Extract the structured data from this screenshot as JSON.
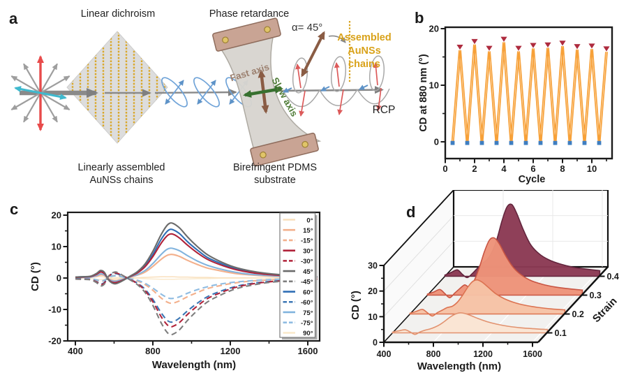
{
  "panels": {
    "a_label": "a",
    "b_label": "b",
    "c_label": "c",
    "d_label": "d"
  },
  "panel_a": {
    "title_linear_dichroism": "Linear dichroism",
    "title_phase_retardance": "Phase retardance",
    "caption_linearly_assembled_line1": "Linearly assembled",
    "caption_linearly_assembled_line2": "AuNSs chains",
    "caption_birefringent_line1": "Birefringent PDMS",
    "caption_birefringent_line2": "substrate",
    "alpha_angle_label": "α= 45°",
    "assembled_chains_line1": "Assembled",
    "assembled_chains_line2": "AuNSs",
    "assembled_chains_line3": "chains",
    "fast_axis_label": "Fast axis",
    "slow_axis_label": "Slow axis",
    "rcp_label": "RCP",
    "colors": {
      "gold_chains": "#D9A521",
      "unpolarized_red": "#E84B4B",
      "polarized_cyan": "#3FB9CE",
      "fast_axis_brown": "#8A5C44",
      "slow_axis_green": "#37702F",
      "wave_blue": "#6FA3D8",
      "helix_red": "#DC5A5A",
      "beam_gray": "#8A8A8A"
    }
  },
  "chart_data": [
    {
      "id": "b",
      "type": "line",
      "xlabel": "Cycle",
      "ylabel": "CD at 880 nm (°)",
      "xlim": [
        0,
        11.4
      ],
      "ylim": [
        -3,
        20.2
      ],
      "xticks": [
        0,
        2,
        4,
        6,
        8,
        10
      ],
      "xminor": [
        1,
        3,
        5,
        7,
        9,
        11
      ],
      "yticks": [
        0,
        10,
        20
      ],
      "yminor": [
        5,
        15
      ],
      "grid": false,
      "line_color": "#F7A139",
      "series": [
        {
          "name": "stretched-peaks",
          "marker": "triangle-down",
          "color": "#AE2B3E",
          "x": [
            1,
            2,
            3,
            4,
            5,
            6,
            7,
            8,
            9,
            10,
            11
          ],
          "y": [
            16.2,
            17.2,
            16.0,
            17.6,
            16.0,
            16.5,
            16.6,
            16.9,
            16.3,
            16.4,
            15.9
          ]
        },
        {
          "name": "released-valleys",
          "marker": "square",
          "color": "#3E7EC1",
          "x": [
            0.5,
            1.5,
            2.5,
            3.5,
            4.5,
            5.5,
            6.5,
            7.5,
            8.5,
            9.5,
            10.5
          ],
          "y": [
            -0.2,
            -0.2,
            -0.2,
            -0.2,
            -0.2,
            -0.2,
            -0.2,
            -0.2,
            -0.2,
            -0.2,
            -0.2
          ]
        }
      ]
    },
    {
      "id": "c",
      "type": "line",
      "xlabel": "Wavelength (nm)",
      "ylabel": "CD (°)",
      "xlim": [
        360,
        1660
      ],
      "ylim": [
        -20,
        20
      ],
      "xticks": [
        400,
        800,
        1200,
        1600
      ],
      "xminor": [
        600,
        1000,
        1400
      ],
      "yticks": [
        -20,
        -10,
        0,
        10,
        20
      ],
      "yminor": [
        -15,
        -5,
        5,
        15
      ],
      "grid": false,
      "legend_position": "inside-right",
      "x": [
        400,
        440,
        480,
        510,
        530,
        550,
        570,
        590,
        610,
        640,
        680,
        720,
        760,
        800,
        840,
        870,
        890,
        910,
        940,
        980,
        1030,
        1080,
        1140,
        1220,
        1300,
        1400,
        1500,
        1600,
        1650
      ],
      "series": [
        {
          "name": "0°",
          "color": "#F9DFBC",
          "dashed": false,
          "y": [
            0.1,
            0.1,
            0.2,
            0.4,
            0.5,
            0.3,
            0.0,
            -0.2,
            -0.2,
            -0.1,
            0.0,
            0.1,
            0.2,
            0.3,
            0.4,
            0.4,
            0.4,
            0.4,
            0.3,
            0.3,
            0.2,
            0.2,
            0.1,
            0.1,
            0.1,
            0.0,
            0.0,
            0.0,
            0.0
          ]
        },
        {
          "name": "15°",
          "color": "#F3B08C",
          "dashed": false,
          "y": [
            0.1,
            0.2,
            0.3,
            0.6,
            1.0,
            0.8,
            -0.2,
            -0.7,
            -0.8,
            -0.4,
            0.2,
            0.9,
            1.9,
            3.7,
            5.8,
            7.1,
            7.5,
            7.4,
            6.8,
            5.6,
            4.3,
            3.2,
            2.4,
            1.5,
            1.0,
            0.6,
            0.4,
            0.2,
            0.2
          ]
        },
        {
          "name": "-15°",
          "color": "#F3B08C",
          "dashed": true,
          "y": [
            -0.1,
            -0.2,
            -0.3,
            -0.7,
            -1.1,
            -0.8,
            0.2,
            0.7,
            0.8,
            0.5,
            -0.2,
            -0.9,
            -2.1,
            -3.9,
            -6.2,
            -7.5,
            -8.0,
            -7.9,
            -7.2,
            -5.9,
            -4.6,
            -3.4,
            -2.5,
            -1.6,
            -1.0,
            -0.6,
            -0.4,
            -0.2,
            -0.2
          ]
        },
        {
          "name": "30°",
          "color": "#B0233A",
          "dashed": false,
          "y": [
            0.2,
            0.3,
            0.5,
            1.2,
            1.9,
            1.4,
            -0.4,
            -1.3,
            -1.4,
            -0.8,
            0.4,
            1.6,
            3.6,
            6.8,
            10.8,
            13.2,
            14.0,
            13.8,
            12.6,
            10.4,
            8.0,
            6.0,
            4.4,
            2.8,
            1.8,
            1.1,
            0.7,
            0.4,
            0.3
          ]
        },
        {
          "name": "-30°",
          "color": "#B0233A",
          "dashed": true,
          "y": [
            -0.3,
            -0.4,
            -0.5,
            -1.3,
            -2.1,
            -1.6,
            0.4,
            1.4,
            1.6,
            0.9,
            -0.4,
            -1.8,
            -4.0,
            -7.5,
            -12.0,
            -14.6,
            -15.5,
            -15.2,
            -14.0,
            -11.5,
            -8.9,
            -6.6,
            -4.9,
            -3.1,
            -2.0,
            -1.2,
            -0.8,
            -0.4,
            -0.4
          ]
        },
        {
          "name": "45°",
          "color": "#6B6B6B",
          "dashed": false,
          "y": [
            0.3,
            0.4,
            0.6,
            1.5,
            2.4,
            1.8,
            -0.5,
            -1.6,
            -1.8,
            -1.0,
            0.5,
            2.0,
            4.5,
            8.5,
            13.5,
            16.5,
            17.5,
            17.2,
            15.8,
            13.0,
            10.0,
            7.5,
            5.5,
            3.5,
            2.3,
            1.4,
            0.9,
            0.5,
            0.4
          ]
        },
        {
          "name": "-45°",
          "color": "#7E7E7E",
          "dashed": true,
          "y": [
            -0.3,
            -0.4,
            -0.6,
            -1.5,
            -2.5,
            -1.9,
            0.5,
            1.6,
            1.9,
            1.0,
            -0.5,
            -2.1,
            -4.6,
            -8.7,
            -13.9,
            -17.0,
            -18.0,
            -17.7,
            -16.3,
            -13.4,
            -10.3,
            -7.7,
            -5.7,
            -3.6,
            -2.4,
            -1.4,
            -0.9,
            -0.5,
            -0.4
          ]
        },
        {
          "name": "60°",
          "color": "#2F6EB5",
          "dashed": false,
          "y": [
            0.3,
            0.4,
            0.5,
            1.3,
            2.1,
            1.6,
            -0.4,
            -1.4,
            -1.6,
            -0.9,
            0.4,
            1.8,
            4.0,
            7.5,
            12.0,
            14.6,
            15.5,
            15.2,
            14.0,
            11.5,
            8.9,
            6.6,
            4.9,
            3.1,
            2.0,
            1.2,
            0.8,
            0.4,
            0.4
          ]
        },
        {
          "name": "-60°",
          "color": "#3C77B5",
          "dashed": true,
          "y": [
            -0.2,
            -0.3,
            -0.5,
            -1.2,
            -1.9,
            -1.4,
            0.4,
            1.3,
            1.4,
            0.8,
            -0.4,
            -1.6,
            -3.6,
            -6.8,
            -10.8,
            -13.2,
            -14.0,
            -13.8,
            -12.6,
            -10.4,
            -8.0,
            -6.0,
            -4.4,
            -2.8,
            -1.8,
            -1.1,
            -0.7,
            -0.4,
            -0.3
          ]
        },
        {
          "name": "75°",
          "color": "#82B4DE",
          "dashed": false,
          "y": [
            0.2,
            0.2,
            0.3,
            0.8,
            1.3,
            1.0,
            -0.3,
            -0.9,
            -1.0,
            -0.5,
            0.3,
            1.1,
            2.4,
            4.6,
            7.3,
            9.0,
            9.5,
            9.3,
            8.6,
            7.1,
            5.4,
            4.1,
            3.0,
            1.9,
            1.2,
            0.8,
            0.5,
            0.3,
            0.2
          ]
        },
        {
          "name": "-75°",
          "color": "#8FBCE2",
          "dashed": true,
          "y": [
            -0.1,
            -0.1,
            -0.2,
            -0.6,
            -0.9,
            -0.7,
            0.2,
            0.6,
            0.7,
            0.4,
            -0.2,
            -0.7,
            -1.7,
            -3.2,
            -5.0,
            -6.1,
            -6.5,
            -6.4,
            -5.9,
            -4.8,
            -3.7,
            -2.8,
            -2.0,
            -1.3,
            -0.9,
            -0.5,
            -0.3,
            -0.2,
            -0.1
          ]
        },
        {
          "name": "90°",
          "color": "#FAE9CC",
          "dashed": false,
          "y": [
            -0.1,
            -0.1,
            -0.2,
            -0.4,
            -0.5,
            -0.3,
            0.0,
            0.2,
            0.2,
            0.1,
            0.0,
            -0.1,
            -0.2,
            -0.3,
            -0.4,
            -0.4,
            -0.4,
            -0.4,
            -0.3,
            -0.3,
            -0.2,
            -0.2,
            -0.1,
            -0.1,
            -0.1,
            0.0,
            0.0,
            0.0,
            0.0
          ]
        }
      ]
    },
    {
      "id": "d",
      "type": "ridgeline-3d",
      "xlabel": "Wavelength (nm)",
      "ylabel": "CD (°)",
      "zlabel": "Strain",
      "xticks": [
        400,
        800,
        1200,
        1600
      ],
      "xminor": [
        600,
        1000,
        1400
      ],
      "yticks": [
        0,
        10,
        20,
        30
      ],
      "yminor": [
        5,
        15,
        25
      ],
      "zticks": [
        0.1,
        0.2,
        0.3,
        0.4
      ],
      "x": [
        400,
        450,
        500,
        540,
        580,
        620,
        660,
        700,
        740,
        780,
        820,
        860,
        900,
        940,
        980,
        1030,
        1090,
        1160,
        1240,
        1330,
        1430,
        1540,
        1650
      ],
      "series": [
        {
          "strain": 0.1,
          "fill": "#FAE4D3",
          "stroke": "#E2926F",
          "y": [
            0.3,
            0.8,
            1.2,
            0.4,
            -0.6,
            0.3,
            1.0,
            1.5,
            2.2,
            3.2,
            4.5,
            6.0,
            7.2,
            7.8,
            7.6,
            6.8,
            5.6,
            4.4,
            3.4,
            2.6,
            2.0,
            1.6,
            1.3
          ]
        },
        {
          "strain": 0.2,
          "fill": "#F6C2A5",
          "stroke": "#DC7351",
          "y": [
            0.3,
            1.0,
            1.8,
            0.5,
            -0.8,
            0.5,
            1.5,
            2.5,
            3.0,
            4.5,
            7.0,
            10.0,
            12.5,
            13.3,
            12.5,
            10.5,
            8.0,
            6.0,
            4.5,
            3.4,
            2.6,
            2.0,
            1.6
          ]
        },
        {
          "strain": 0.3,
          "fill": "#ED9379",
          "stroke": "#C85543",
          "y": [
            0.4,
            1.2,
            2.2,
            0.6,
            -1.0,
            0.8,
            2.5,
            4.0,
            3.2,
            6.0,
            11.0,
            17.0,
            21.5,
            22.3,
            20.0,
            15.5,
            11.0,
            7.8,
            5.6,
            4.2,
            3.2,
            2.5,
            2.0
          ]
        },
        {
          "strain": 0.4,
          "fill": "#8B3A54",
          "stroke": "#63253D",
          "y": [
            0.5,
            1.5,
            2.5,
            0.8,
            -0.5,
            1.0,
            3.0,
            5.0,
            6.5,
            9.5,
            14.5,
            21.5,
            27.0,
            28.0,
            24.5,
            18.5,
            12.5,
            8.8,
            6.4,
            4.8,
            3.6,
            2.8,
            2.2
          ]
        }
      ]
    }
  ]
}
